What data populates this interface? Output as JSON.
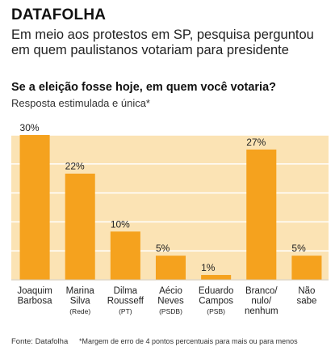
{
  "brand": "DATAFOLHA",
  "headline": "Em meio aos protestos em SP, pesquisa perguntou em quem paulistanos votariam para presidente",
  "chart_data": {
    "type": "bar",
    "title": "Se a eleição fosse hoje, em quem você votaria?",
    "subtitle": "Resposta estimulada e única*",
    "categories": [
      [
        "Joaquim",
        "Barbosa"
      ],
      [
        "Marina",
        "Silva",
        "(Rede)"
      ],
      [
        "Dilma",
        "Rousseff",
        "(PT)"
      ],
      [
        "Aécio",
        "Neves",
        "(PSDB)"
      ],
      [
        "Eduardo",
        "Campos",
        "(PSB)"
      ],
      [
        "Branco/",
        "nulo/",
        "nenhum"
      ],
      [
        "Não",
        "sabe"
      ]
    ],
    "values": [
      30,
      22,
      10,
      5,
      1,
      27,
      5
    ],
    "value_labels": [
      "30%",
      "22%",
      "10%",
      "5%",
      "1%",
      "27%",
      "5%"
    ],
    "ylim": [
      0,
      30
    ],
    "grid": true,
    "bar_color": "#f5a21e",
    "plot_bg": "#fbe3b4",
    "grid_color": "#ffffff"
  },
  "footer": {
    "source": "Fonte: Datafolha",
    "note": "*Margem de erro de 4 pontos percentuais para mais ou para menos"
  }
}
